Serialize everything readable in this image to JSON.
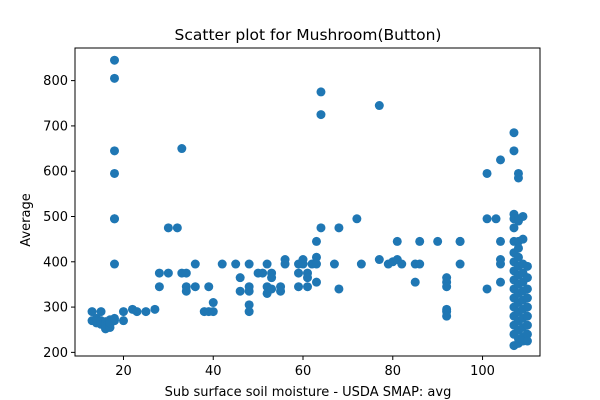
{
  "chart_data": {
    "type": "scatter",
    "title": "Scatter plot for Mushroom(Button)",
    "xlabel": "Sub surface soil moisture - USDA SMAP: avg",
    "ylabel": "Average",
    "xlim": [
      9.2,
      112.8
    ],
    "ylim": [
      192,
      872
    ],
    "xticks": [
      20,
      40,
      60,
      80,
      100
    ],
    "yticks": [
      200,
      300,
      400,
      500,
      600,
      700,
      800
    ],
    "grid": false,
    "point_color": "#1f77b4",
    "points": [
      [
        13,
        290
      ],
      [
        13,
        270
      ],
      [
        14,
        265
      ],
      [
        14,
        275
      ],
      [
        15,
        290
      ],
      [
        15,
        270
      ],
      [
        15,
        262
      ],
      [
        16,
        268
      ],
      [
        16,
        258
      ],
      [
        16,
        252
      ],
      [
        17,
        262
      ],
      [
        17,
        272
      ],
      [
        17,
        255
      ],
      [
        17,
        265
      ],
      [
        18,
        270
      ],
      [
        18,
        275
      ],
      [
        18,
        845
      ],
      [
        18,
        805
      ],
      [
        18,
        645
      ],
      [
        18,
        595
      ],
      [
        18,
        495
      ],
      [
        18,
        495
      ],
      [
        18,
        395
      ],
      [
        20,
        290
      ],
      [
        20,
        270
      ],
      [
        22,
        295
      ],
      [
        23,
        290
      ],
      [
        25,
        290
      ],
      [
        27,
        295
      ],
      [
        28,
        375
      ],
      [
        28,
        345
      ],
      [
        30,
        475
      ],
      [
        30,
        375
      ],
      [
        32,
        475
      ],
      [
        33,
        650
      ],
      [
        33,
        375
      ],
      [
        34,
        375
      ],
      [
        34,
        345
      ],
      [
        34,
        335
      ],
      [
        36,
        395
      ],
      [
        36,
        345
      ],
      [
        38,
        290
      ],
      [
        39,
        345
      ],
      [
        39,
        290
      ],
      [
        40,
        310
      ],
      [
        40,
        290
      ],
      [
        42,
        395
      ],
      [
        45,
        395
      ],
      [
        46,
        365
      ],
      [
        46,
        335
      ],
      [
        48,
        395
      ],
      [
        48,
        345
      ],
      [
        48,
        335
      ],
      [
        48,
        305
      ],
      [
        48,
        290
      ],
      [
        50,
        375
      ],
      [
        51,
        375
      ],
      [
        52,
        395
      ],
      [
        52,
        345
      ],
      [
        52,
        330
      ],
      [
        53,
        375
      ],
      [
        53,
        365
      ],
      [
        53,
        340
      ],
      [
        55,
        345
      ],
      [
        55,
        335
      ],
      [
        56,
        405
      ],
      [
        56,
        395
      ],
      [
        59,
        395
      ],
      [
        59,
        375
      ],
      [
        59,
        345
      ],
      [
        60,
        405
      ],
      [
        60,
        395
      ],
      [
        61,
        375
      ],
      [
        61,
        365
      ],
      [
        61,
        345
      ],
      [
        62,
        395
      ],
      [
        63,
        445
      ],
      [
        63,
        410
      ],
      [
        63,
        395
      ],
      [
        63,
        355
      ],
      [
        64,
        775
      ],
      [
        64,
        725
      ],
      [
        64,
        475
      ],
      [
        67,
        395
      ],
      [
        68,
        475
      ],
      [
        68,
        340
      ],
      [
        72,
        495
      ],
      [
        73,
        395
      ],
      [
        77,
        745
      ],
      [
        77,
        405
      ],
      [
        79,
        395
      ],
      [
        80,
        400
      ],
      [
        81,
        445
      ],
      [
        81,
        405
      ],
      [
        82,
        395
      ],
      [
        85,
        395
      ],
      [
        85,
        355
      ],
      [
        86,
        445
      ],
      [
        86,
        395
      ],
      [
        90,
        445
      ],
      [
        92,
        365
      ],
      [
        92,
        355
      ],
      [
        92,
        345
      ],
      [
        92,
        295
      ],
      [
        92,
        290
      ],
      [
        92,
        280
      ],
      [
        95,
        445
      ],
      [
        95,
        445
      ],
      [
        95,
        395
      ],
      [
        101,
        595
      ],
      [
        101,
        495
      ],
      [
        101,
        340
      ],
      [
        103,
        495
      ],
      [
        104,
        625
      ],
      [
        104,
        445
      ],
      [
        104,
        405
      ],
      [
        104,
        395
      ],
      [
        104,
        355
      ],
      [
        107,
        685
      ],
      [
        107,
        645
      ],
      [
        107,
        505
      ],
      [
        107,
        495
      ],
      [
        107,
        475
      ],
      [
        107,
        445
      ],
      [
        107,
        420
      ],
      [
        107,
        400
      ],
      [
        107,
        380
      ],
      [
        107,
        360
      ],
      [
        107,
        340
      ],
      [
        107,
        320
      ],
      [
        107,
        300
      ],
      [
        107,
        280
      ],
      [
        107,
        260
      ],
      [
        107,
        240
      ],
      [
        107,
        215
      ],
      [
        108,
        595
      ],
      [
        108,
        585
      ],
      [
        108,
        495
      ],
      [
        108,
        490
      ],
      [
        108,
        445
      ],
      [
        108,
        430
      ],
      [
        108,
        410
      ],
      [
        108,
        390
      ],
      [
        108,
        370
      ],
      [
        108,
        350
      ],
      [
        108,
        330
      ],
      [
        108,
        310
      ],
      [
        108,
        290
      ],
      [
        108,
        270
      ],
      [
        108,
        250
      ],
      [
        108,
        230
      ],
      [
        108,
        220
      ],
      [
        109,
        500
      ],
      [
        109,
        450
      ],
      [
        109,
        395
      ],
      [
        109,
        375
      ],
      [
        109,
        355
      ],
      [
        109,
        335
      ],
      [
        109,
        315
      ],
      [
        109,
        295
      ],
      [
        109,
        275
      ],
      [
        109,
        255
      ],
      [
        109,
        235
      ],
      [
        109,
        225
      ],
      [
        110,
        390
      ],
      [
        110,
        365
      ],
      [
        110,
        340
      ],
      [
        110,
        320
      ],
      [
        110,
        300
      ],
      [
        110,
        280
      ],
      [
        110,
        260
      ],
      [
        110,
        240
      ],
      [
        110,
        225
      ]
    ]
  }
}
